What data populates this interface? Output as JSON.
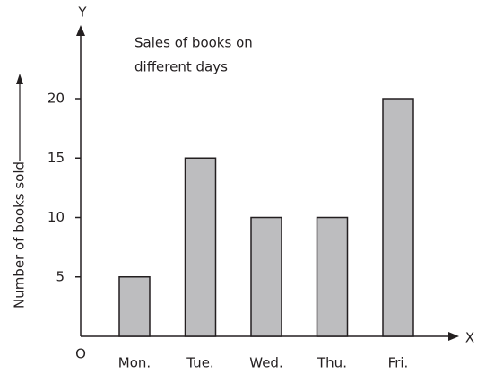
{
  "chart_data": {
    "type": "bar",
    "title": [
      "Sales of books on",
      "different days"
    ],
    "y_label": "Number of books sold",
    "x_axis_name": "X",
    "y_axis_name": "Y",
    "origin_label": "O",
    "categories": [
      "Mon.",
      "Tue.",
      "Wed.",
      "Thu.",
      "Fri."
    ],
    "values": [
      5,
      15,
      10,
      10,
      20
    ],
    "color": "#bdbdbf",
    "ylim": [
      0,
      20
    ],
    "yticks": [
      5,
      10,
      15,
      20
    ],
    "grid": false
  }
}
